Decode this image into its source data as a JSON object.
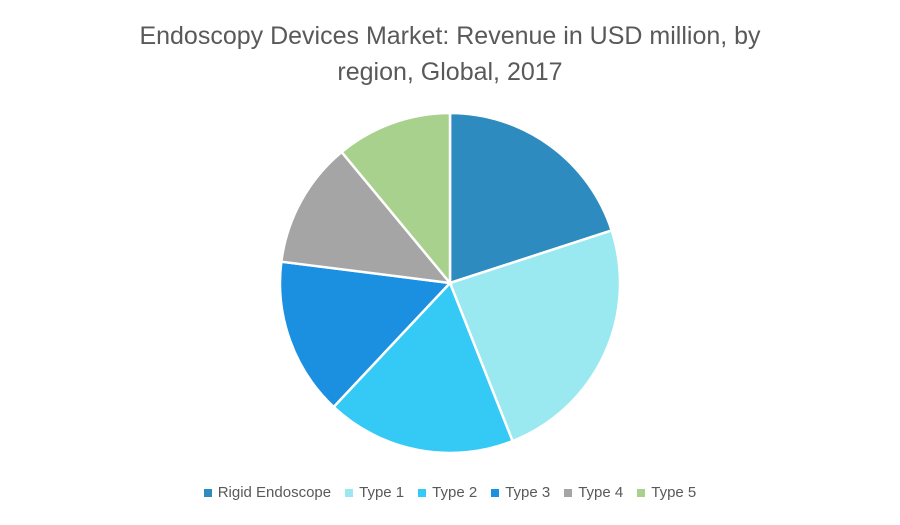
{
  "chart_data": {
    "type": "pie",
    "title": "Endoscopy Devices Market: Revenue in USD million, by region, Global, 2017",
    "categories": [
      "Rigid Endoscope",
      "Type 1",
      "Type 2",
      "Type 3",
      "Type 4",
      "Type 5"
    ],
    "values": [
      20,
      24,
      18,
      15,
      12,
      11
    ],
    "colors": [
      "#2e8bc0",
      "#9ae8f0",
      "#35c9f5",
      "#1b8fe0",
      "#a5a5a5",
      "#a9d18e"
    ],
    "legend": "bottom"
  }
}
